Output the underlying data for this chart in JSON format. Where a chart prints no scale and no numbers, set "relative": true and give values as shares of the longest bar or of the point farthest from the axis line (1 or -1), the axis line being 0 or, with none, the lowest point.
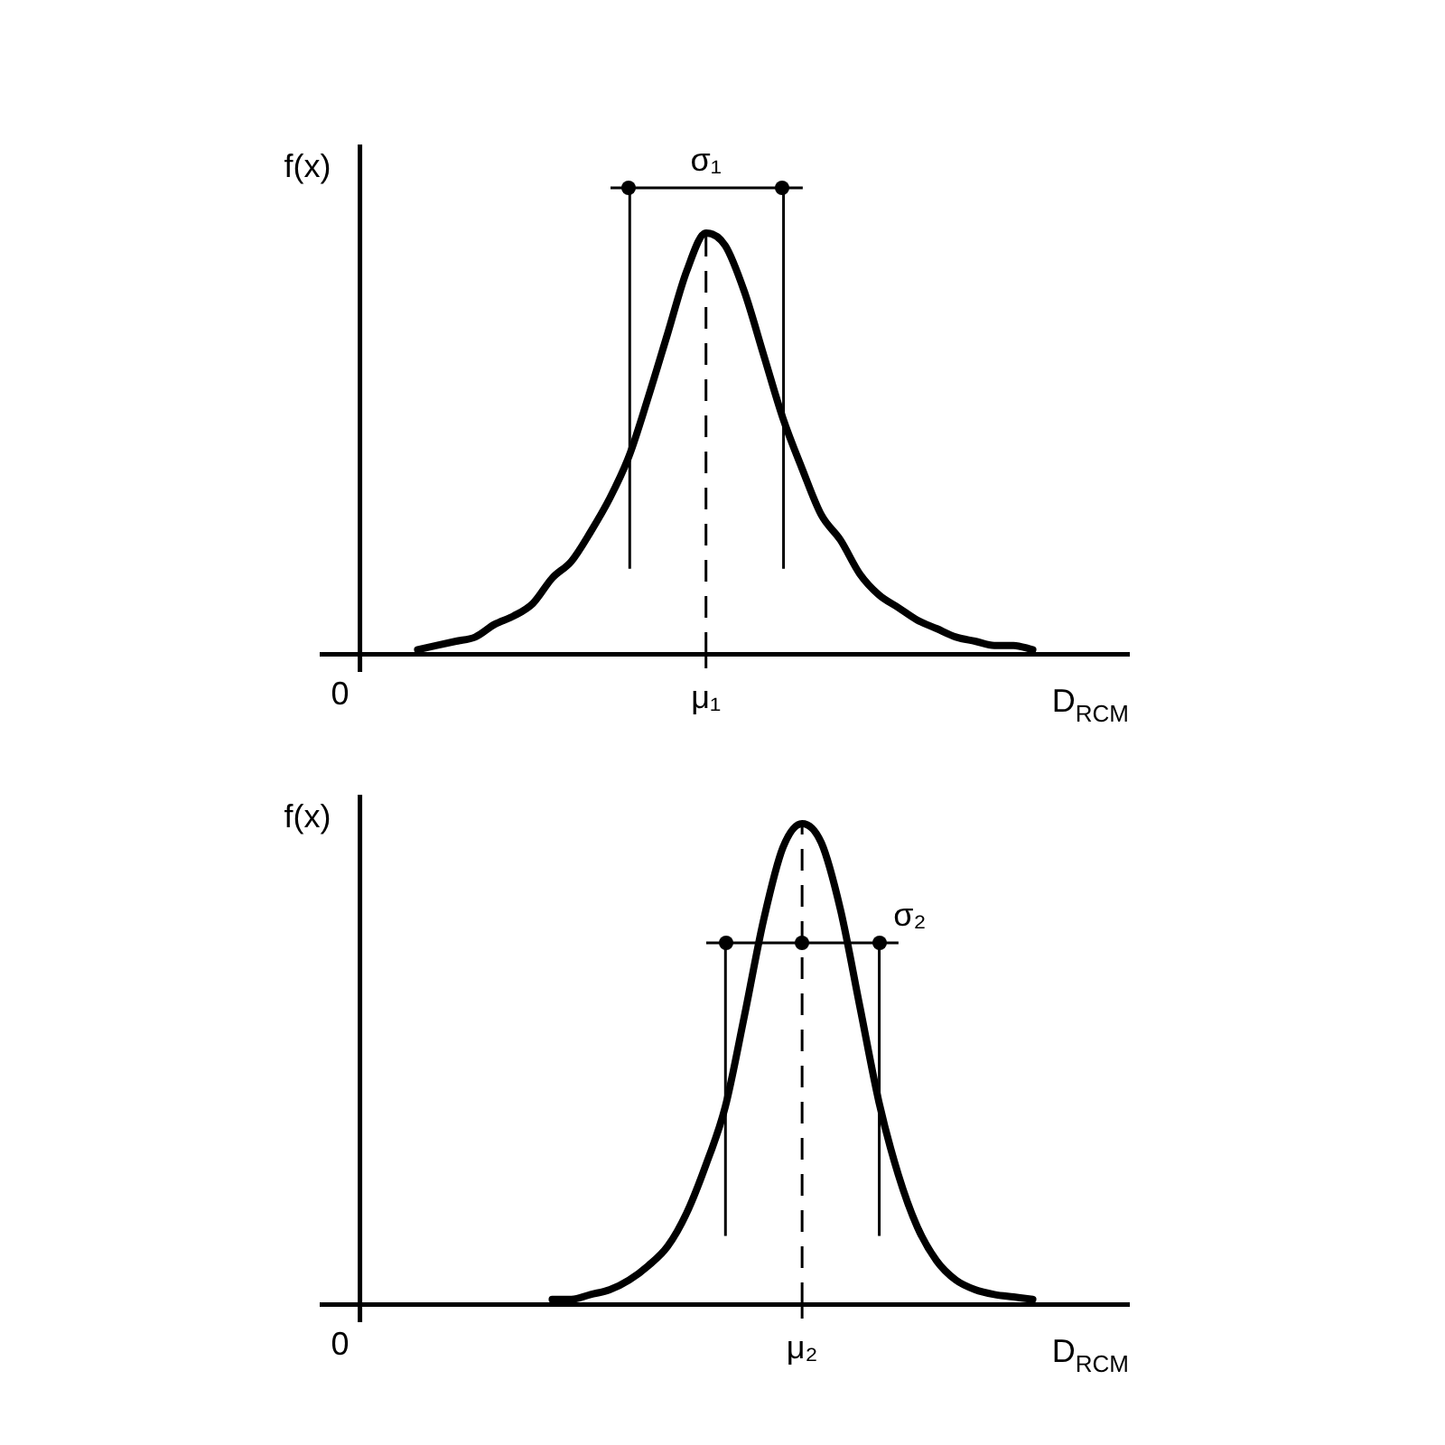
{
  "chart_data": [
    {
      "type": "line",
      "relative": true,
      "xlabel": "D$_{RCM}$",
      "ylabel": "f(x)",
      "legend": false,
      "categories": [
        null,
        null,
        null,
        null,
        null,
        null,
        null,
        null,
        null,
        null,
        null,
        null,
        null,
        null,
        null,
        null,
        null,
        null,
        null,
        null,
        null,
        null,
        null,
        null,
        null,
        null,
        null,
        null,
        null,
        null,
        null,
        null,
        null,
        null,
        null,
        null,
        null,
        null,
        null,
        null,
        null
      ],
      "annotations": [
        "0",
        "σ₁"
      ],
      "ref_lines": [
        {
          "axis": "x",
          "label": "μ₁",
          "line_style": "dashed",
          "color": "#000000"
        }
      ],
      "series": [
        {
          "color": "#000000",
          "marker": "none",
          "values": [
            null,
            null,
            null,
            0.01,
            0.02,
            0.03,
            0.04,
            0.07,
            0.09,
            0.12,
            0.18,
            0.22,
            0.29,
            0.37,
            0.47,
            0.61,
            0.76,
            0.91,
            1,
            0.97,
            0.86,
            0.71,
            0.56,
            0.44,
            0.33,
            0.27,
            0.19,
            0.14,
            0.11,
            0.08,
            0.06,
            0.04,
            0.03,
            0.02,
            0.02,
            0.01,
            null,
            null,
            null,
            null,
            null
          ]
        }
      ]
    },
    {
      "type": "line",
      "relative": true,
      "xlabel": "D$_{RCM}$",
      "ylabel": "f(x)",
      "legend": false,
      "categories": [
        null,
        null,
        null,
        null,
        null,
        null,
        null,
        null,
        null,
        null,
        null,
        null,
        null,
        null,
        null,
        null,
        null,
        null,
        null,
        null,
        null,
        null,
        null,
        null,
        null,
        null,
        null,
        null,
        null,
        null,
        null,
        null,
        null,
        null,
        null,
        null,
        null,
        null,
        null,
        null,
        null
      ],
      "annotations": [
        "0",
        "σ₂"
      ],
      "ref_lines": [
        {
          "axis": "x",
          "label": "μ₂",
          "line_style": "dashed",
          "color": "#000000"
        }
      ],
      "series": [
        {
          "color": "#000000",
          "marker": "none",
          "values": [
            null,
            null,
            null,
            null,
            null,
            null,
            null,
            null,
            null,
            null,
            0.01,
            0.01,
            0.02,
            0.03,
            0.05,
            0.08,
            0.12,
            0.19,
            0.29,
            0.41,
            0.6,
            0.8,
            0.95,
            1,
            0.96,
            0.82,
            0.62,
            0.42,
            0.27,
            0.16,
            0.09,
            0.05,
            0.03,
            0.02,
            0.015,
            0.01,
            null,
            null,
            null,
            null,
            null
          ]
        }
      ]
    }
  ]
}
